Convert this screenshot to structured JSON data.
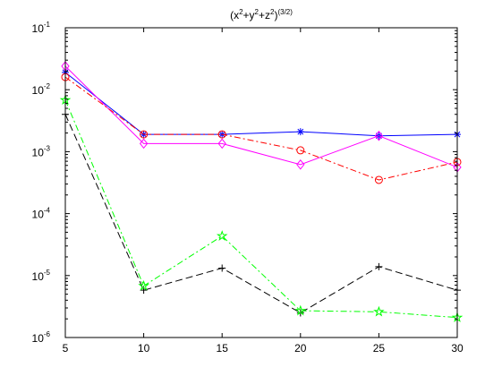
{
  "chart_data": {
    "type": "line",
    "title": "(x2+y2+z2)(3/2)",
    "title_parts": {
      "base_x": "(x",
      "exp_x": "2",
      "base_y": "+y",
      "exp_y": "2",
      "base_z": "+z",
      "exp_z": "2",
      "close": ")",
      "outer_exp": "(3/2)"
    },
    "xlabel": "",
    "ylabel": "",
    "y_scale": "log",
    "xlim": [
      5,
      30
    ],
    "ylim": [
      1e-06,
      0.1
    ],
    "grid": false,
    "x_ticks": [
      5,
      10,
      15,
      20,
      25,
      30
    ],
    "x_tick_labels": [
      "5",
      "10",
      "15",
      "20",
      "25",
      "30"
    ],
    "y_ticks": [
      {
        "value": 1e-06,
        "base": "10",
        "exp": "-6"
      },
      {
        "value": 1e-05,
        "base": "10",
        "exp": "-5"
      },
      {
        "value": 0.0001,
        "base": "10",
        "exp": "-4"
      },
      {
        "value": 0.001,
        "base": "10",
        "exp": "-3"
      },
      {
        "value": 0.01,
        "base": "10",
        "exp": "-2"
      },
      {
        "value": 0.1,
        "base": "10",
        "exp": "-1"
      }
    ],
    "x": [
      5,
      10,
      15,
      20,
      25,
      30
    ],
    "series": [
      {
        "color": "#0000ff",
        "line_style": "solid",
        "marker": "asterisk",
        "values": [
          0.019,
          0.0019,
          0.0019,
          0.0021,
          0.0018,
          0.0019
        ]
      },
      {
        "color": "#ff00ff",
        "line_style": "solid",
        "marker": "diamond",
        "values": [
          0.024,
          0.00135,
          0.00135,
          0.00062,
          0.0018,
          0.00056
        ]
      },
      {
        "color": "#ff0000",
        "line_style": "dashdot",
        "marker": "circle",
        "values": [
          0.016,
          0.0019,
          0.0019,
          0.00105,
          0.00035,
          0.00068
        ]
      },
      {
        "color": "#000000",
        "line_style": "dashed",
        "marker": "plus",
        "values": [
          0.004,
          5.8e-06,
          1.32e-05,
          2.5e-06,
          1.39e-05,
          5.8e-06
        ]
      },
      {
        "color": "#00ff00",
        "line_style": "dashdot",
        "marker": "pentagram",
        "values": [
          0.0068,
          6.8e-06,
          4.35e-05,
          2.7e-06,
          2.6e-06,
          2.1e-06
        ]
      }
    ]
  }
}
